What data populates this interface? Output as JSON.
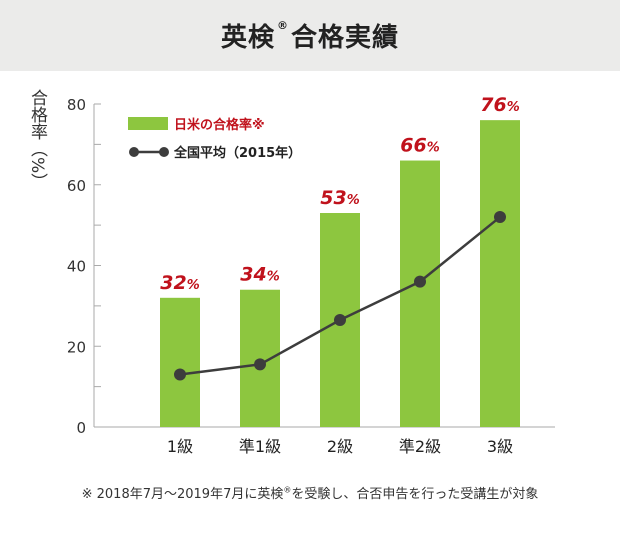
{
  "header": {
    "title_pre": "英検",
    "title_mark": "®",
    "title_post": "合格実績"
  },
  "footnote": {
    "pre": "※ 2018年7月〜2019年7月に英検",
    "mark": "®",
    "post": "を受験し、合否申告を行った受講生が対象"
  },
  "colors": {
    "bar": "#8dc63f",
    "line": "#3d3d3d",
    "bar_label": "#c0121c",
    "legend_bar_text": "#c0121c",
    "header_bg": "#ebebea"
  },
  "chart_data": {
    "type": "bar",
    "ylabel": "合格率（%）",
    "ylim": [
      0,
      80
    ],
    "yticks": [
      0,
      20,
      40,
      60,
      80
    ],
    "grid": false,
    "legend_position": "top-left",
    "categories": [
      "1級",
      "準1級",
      "2級",
      "準2級",
      "3級"
    ],
    "series": [
      {
        "name": "日米の合格率※",
        "kind": "bar",
        "values": [
          32,
          34,
          53,
          66,
          76
        ],
        "labels": [
          "32%",
          "34%",
          "53%",
          "66%",
          "76%"
        ]
      },
      {
        "name": "全国平均（2015年）",
        "kind": "line",
        "values": [
          13,
          15.5,
          26.5,
          36,
          52
        ]
      }
    ]
  }
}
